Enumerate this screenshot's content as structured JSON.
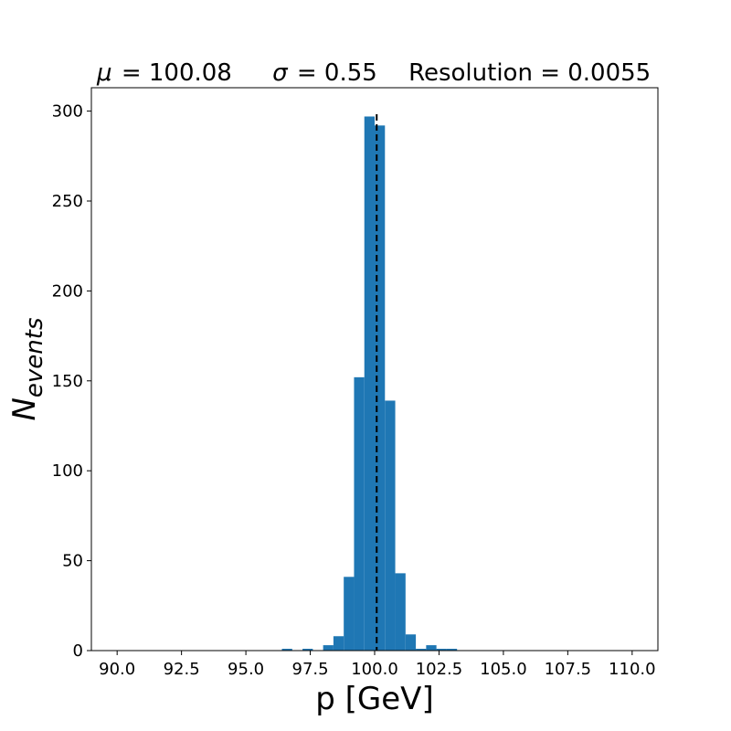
{
  "chart_data": {
    "type": "bar",
    "title_parts": {
      "mu_symbol": "μ",
      "mu_value": "= 100.08",
      "sigma_symbol": "σ",
      "sigma_value": "= 0.55",
      "resolution": "Resolution = 0.0055"
    },
    "xlabel": "p [GeV]",
    "ylabel": {
      "base": "N",
      "sub": "events"
    },
    "xlim": [
      89.0,
      111.0
    ],
    "ylim": [
      0,
      313
    ],
    "xticks": [
      90.0,
      92.5,
      95.0,
      97.5,
      100.0,
      102.5,
      105.0,
      107.5,
      110.0
    ],
    "xtick_labels": [
      "90.0",
      "92.5",
      "95.0",
      "97.5",
      "100.0",
      "102.5",
      "105.0",
      "107.5",
      "110.0"
    ],
    "yticks": [
      0,
      50,
      100,
      150,
      200,
      250,
      300
    ],
    "ytick_labels": [
      "0",
      "50",
      "100",
      "150",
      "200",
      "250",
      "300"
    ],
    "bin_width": 0.4,
    "bin_start": 90.0,
    "counts": [
      0,
      0,
      0,
      0,
      0,
      0,
      0,
      0,
      0,
      0,
      0,
      0,
      0,
      0,
      0,
      0,
      1,
      0,
      1,
      0,
      3,
      8,
      41,
      152,
      297,
      292,
      139,
      43,
      9,
      1,
      3,
      1,
      1,
      0,
      0,
      0,
      0,
      0,
      0,
      0,
      0,
      0,
      0,
      0,
      0,
      0,
      0,
      0,
      0,
      0
    ],
    "mean_line_x": 100.08,
    "bar_color": "#1f77b4",
    "mean_line_color": "#000000",
    "grid": false
  }
}
